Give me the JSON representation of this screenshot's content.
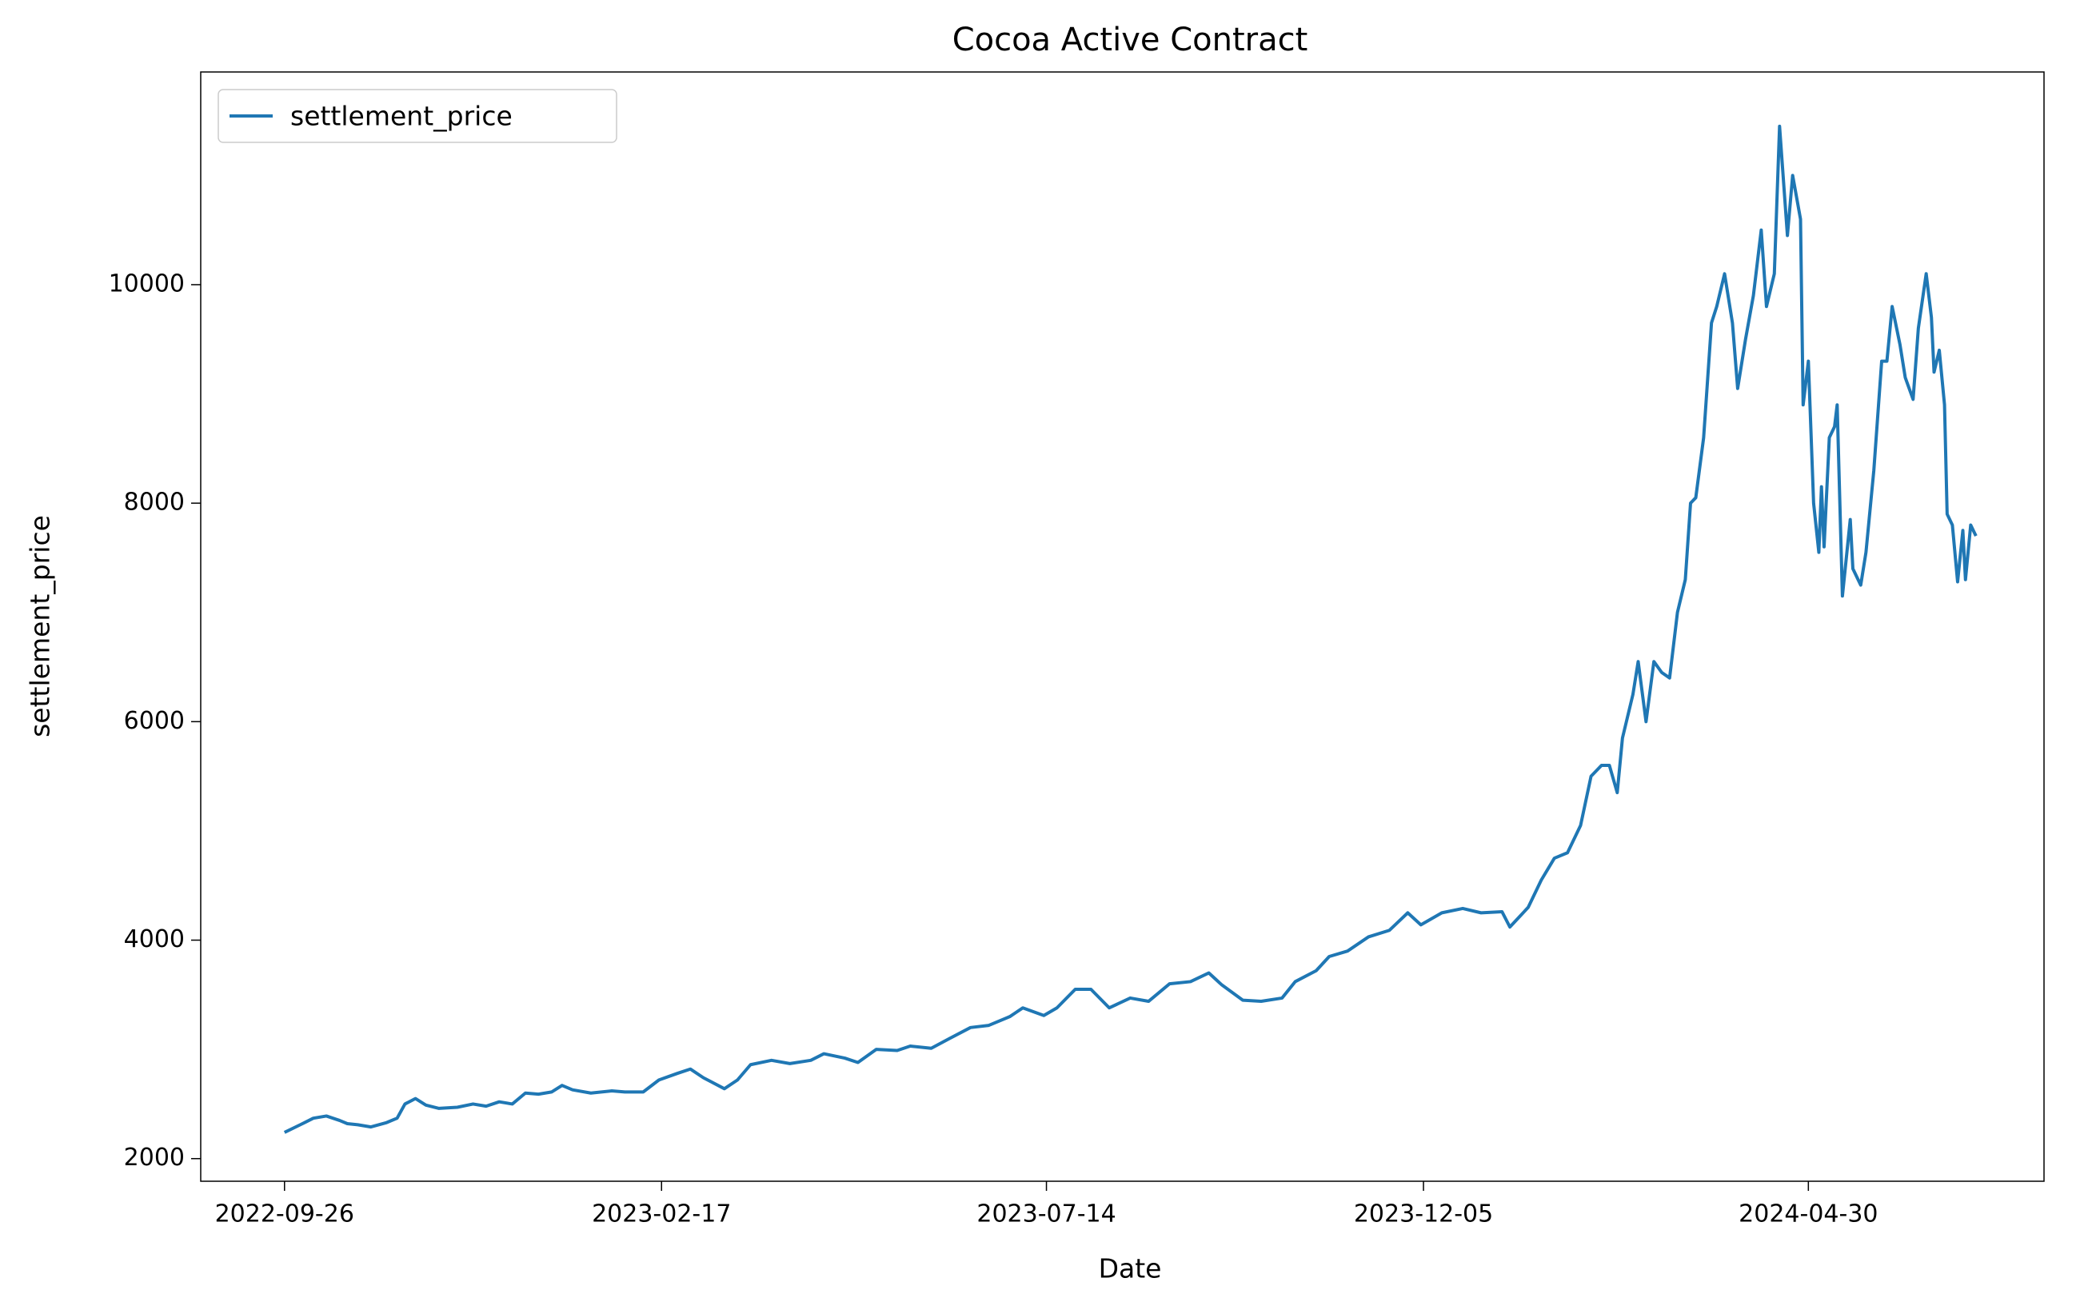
{
  "chart_data": {
    "type": "line",
    "title": "Cocoa Active Contract",
    "x_label": "Date",
    "y_label": "settlement_price",
    "x": [
      "2022-09-26",
      "2022-10-02",
      "2022-10-07",
      "2022-10-12",
      "2022-10-17",
      "2022-10-20",
      "2022-10-24",
      "2022-10-29",
      "2022-11-04",
      "2022-11-08",
      "2022-11-11",
      "2022-11-15",
      "2022-11-19",
      "2022-11-24",
      "2022-12-01",
      "2022-12-07",
      "2022-12-12",
      "2022-12-17",
      "2022-12-22",
      "2022-12-27",
      "2023-01-01",
      "2023-01-06",
      "2023-01-10",
      "2023-01-14",
      "2023-01-21",
      "2023-01-29",
      "2023-02-03",
      "2023-02-10",
      "2023-02-16",
      "2023-02-23",
      "2023-02-28",
      "2023-03-05",
      "2023-03-13",
      "2023-03-18",
      "2023-03-23",
      "2023-03-31",
      "2023-04-07",
      "2023-04-15",
      "2023-04-20",
      "2023-04-28",
      "2023-05-03",
      "2023-05-10",
      "2023-05-18",
      "2023-05-23",
      "2023-05-31",
      "2023-06-07",
      "2023-06-15",
      "2023-06-22",
      "2023-06-30",
      "2023-07-05",
      "2023-07-13",
      "2023-07-18",
      "2023-07-25",
      "2023-07-31",
      "2023-08-07",
      "2023-08-15",
      "2023-08-22",
      "2023-08-30",
      "2023-09-07",
      "2023-09-14",
      "2023-09-19",
      "2023-09-27",
      "2023-10-04",
      "2023-10-12",
      "2023-10-17",
      "2023-10-25",
      "2023-10-30",
      "2023-11-06",
      "2023-11-14",
      "2023-11-22",
      "2023-11-29",
      "2023-12-04",
      "2023-12-12",
      "2023-12-20",
      "2023-12-27",
      "2024-01-04",
      "2024-01-07",
      "2024-01-14",
      "2024-01-19",
      "2024-01-24",
      "2024-01-29",
      "2024-02-03",
      "2024-02-07",
      "2024-02-11",
      "2024-02-14",
      "2024-02-17",
      "2024-02-19",
      "2024-02-23",
      "2024-02-25",
      "2024-02-28",
      "2024-03-02",
      "2024-03-05",
      "2024-03-08",
      "2024-03-11",
      "2024-03-14",
      "2024-03-16",
      "2024-03-18",
      "2024-03-21",
      "2024-03-24",
      "2024-03-26",
      "2024-03-29",
      "2024-04-01",
      "2024-04-03",
      "2024-04-06",
      "2024-04-09",
      "2024-04-12",
      "2024-04-14",
      "2024-04-17",
      "2024-04-19",
      "2024-04-22",
      "2024-04-24",
      "2024-04-27",
      "2024-04-28",
      "2024-04-30",
      "2024-05-02",
      "2024-05-04",
      "2024-05-05",
      "2024-05-06",
      "2024-05-08",
      "2024-05-10",
      "2024-05-11",
      "2024-05-13",
      "2024-05-16",
      "2024-05-17",
      "2024-05-20",
      "2024-05-22",
      "2024-05-25",
      "2024-05-28",
      "2024-05-30",
      "2024-06-01",
      "2024-06-04",
      "2024-06-06",
      "2024-06-09",
      "2024-06-11",
      "2024-06-14",
      "2024-06-16",
      "2024-06-17",
      "2024-06-19",
      "2024-06-21",
      "2024-06-22",
      "2024-06-24",
      "2024-06-26",
      "2024-06-28",
      "2024-06-29",
      "2024-07-01",
      "2024-07-03"
    ],
    "series": [
      {
        "name": "settlement_price",
        "color": "#1f77b4",
        "values": [
          2240,
          2310,
          2370,
          2390,
          2350,
          2320,
          2310,
          2290,
          2330,
          2370,
          2500,
          2550,
          2490,
          2460,
          2470,
          2500,
          2480,
          2520,
          2500,
          2600,
          2590,
          2610,
          2670,
          2630,
          2600,
          2620,
          2610,
          2610,
          2720,
          2780,
          2820,
          2740,
          2640,
          2720,
          2860,
          2900,
          2870,
          2900,
          2960,
          2920,
          2880,
          3000,
          2990,
          3030,
          3010,
          3100,
          3200,
          3220,
          3300,
          3380,
          3310,
          3380,
          3550,
          3550,
          3380,
          3470,
          3440,
          3600,
          3620,
          3700,
          3590,
          3450,
          3440,
          3470,
          3620,
          3720,
          3850,
          3900,
          4030,
          4090,
          4250,
          4140,
          4250,
          4290,
          4250,
          4260,
          4120,
          4300,
          4550,
          4750,
          4800,
          5050,
          5500,
          5600,
          5600,
          5350,
          5850,
          6250,
          6550,
          6000,
          6550,
          6450,
          6400,
          7000,
          7300,
          8000,
          8050,
          8600,
          9650,
          9800,
          10100,
          9650,
          9050,
          9500,
          9900,
          10500,
          9800,
          10100,
          11450,
          10450,
          11000,
          10600,
          8900,
          9300,
          8000,
          7550,
          8150,
          7600,
          8600,
          8700,
          8900,
          7150,
          7850,
          7400,
          7250,
          7550,
          8300,
          9300,
          9300,
          9800,
          9450,
          9150,
          8950,
          9600,
          10100,
          9700,
          9200,
          9400,
          8900,
          7900,
          7800,
          7280,
          7750,
          7300,
          7800,
          7700
        ]
      }
    ],
    "xlim": [
      "2022-08-25",
      "2024-07-29"
    ],
    "xticks": [
      "2022-09-26",
      "2023-02-17",
      "2023-07-14",
      "2023-12-05",
      "2024-04-30"
    ],
    "ylim": [
      1793,
      11947
    ],
    "yticks": [
      2000,
      4000,
      6000,
      8000,
      10000
    ],
    "grid": false,
    "legend": "upper left"
  }
}
